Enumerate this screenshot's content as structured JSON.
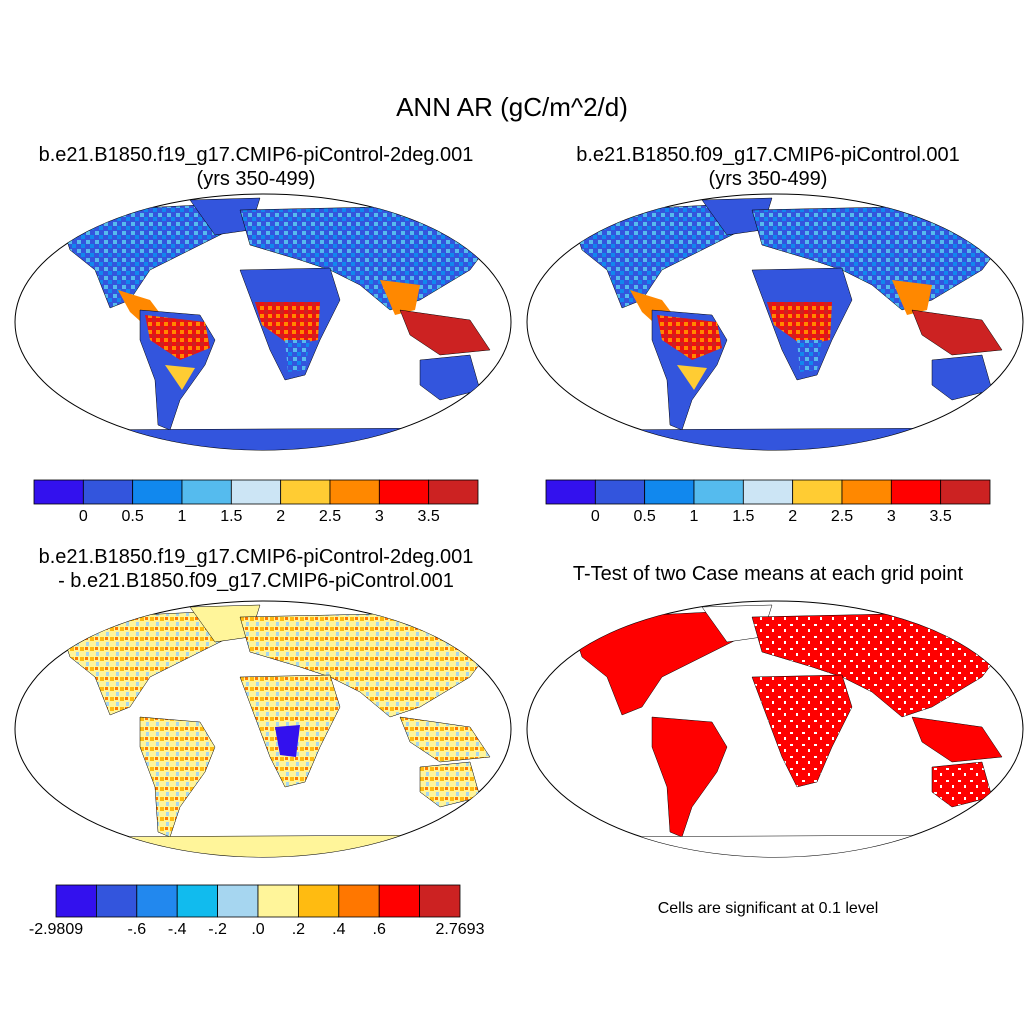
{
  "figure": {
    "title": "ANN AR (gC/m^2/d)"
  },
  "panels": [
    {
      "title_line1": "b.e21.B1850.f19_g17.CMIP6-piControl-2deg.001",
      "title_line2": "(yrs 350-499)",
      "map": "global Robinson projection, land field"
    },
    {
      "title_line1": "b.e21.B1850.f09_g17.CMIP6-piControl.001",
      "title_line2": "(yrs 350-499)",
      "map": "global Robinson projection, land field"
    },
    {
      "title_line1": "b.e21.B1850.f19_g17.CMIP6-piControl-2deg.001",
      "title_line2": "- b.e21.B1850.f09_g17.CMIP6-piControl.001",
      "map": "difference field"
    },
    {
      "title_line1": "T-Test of two Case means at each grid point",
      "title_line2": "",
      "map": "significant cells shown in red",
      "note": "Cells are significant at 0.1 level"
    }
  ],
  "colorbars": {
    "abs": {
      "colors": [
        "#3311ee",
        "#3355dd",
        "#1188ee",
        "#55bbee",
        "#cce5f5",
        "#ffcc33",
        "#ff8800",
        "#ff0000",
        "#cc2222"
      ],
      "labels": [
        "0",
        "0.5",
        "1",
        "1.5",
        "2",
        "2.5",
        "3",
        "3.5"
      ]
    },
    "diff": {
      "colors": [
        "#3311ee",
        "#3355dd",
        "#2288ee",
        "#11bbee",
        "#a6d6f0",
        "#fff59a",
        "#ffbb11",
        "#ff7700",
        "#ff0000",
        "#cc2222"
      ],
      "labels": [
        "-2.9809",
        "-.6",
        "-.4",
        "-.2",
        ".0",
        ".2",
        ".4",
        ".6",
        "2.7693"
      ]
    }
  },
  "colors": {
    "land_low": "#3355dd",
    "land_high": "#dd2222",
    "diff_base": "#fff59a",
    "signif": "#ff0000"
  }
}
